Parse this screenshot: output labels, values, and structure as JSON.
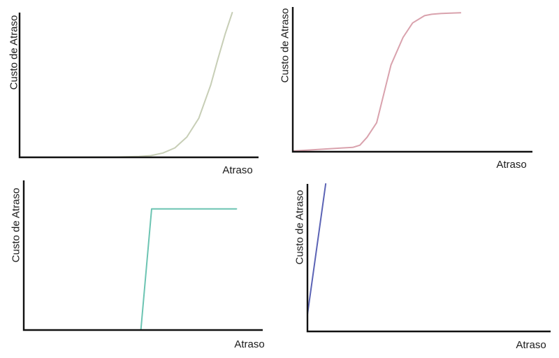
{
  "chart_data": [
    {
      "type": "line",
      "xlabel": "Atraso",
      "ylabel": "Custo de Atraso",
      "grid": false,
      "legend": false,
      "xlim": [
        0,
        10
      ],
      "ylim": [
        0,
        10
      ],
      "series": [
        {
          "color": "#c7ceb6",
          "x": [
            0,
            1,
            2,
            3,
            4,
            5,
            5.5,
            6,
            6.5,
            7,
            7.5,
            8,
            8.3,
            8.6,
            8.9
          ],
          "y": [
            0,
            0,
            0,
            0.01,
            0.02,
            0.06,
            0.12,
            0.3,
            0.65,
            1.4,
            2.7,
            5.0,
            6.8,
            8.5,
            10
          ]
        }
      ]
    },
    {
      "type": "line",
      "xlabel": "Atraso",
      "ylabel": "Custo de Atraso",
      "grid": false,
      "legend": false,
      "xlim": [
        0,
        10
      ],
      "ylim": [
        0,
        10
      ],
      "series": [
        {
          "color": "#d9a2ad",
          "x": [
            0,
            1,
            2,
            2.5,
            2.8,
            3.1,
            3.5,
            4.1,
            4.6,
            5.0,
            5.5,
            5.8,
            6.2,
            7.0
          ],
          "y": [
            0.05,
            0.15,
            0.25,
            0.3,
            0.45,
            1.0,
            2.0,
            6.0,
            7.9,
            8.9,
            9.4,
            9.5,
            9.55,
            9.6
          ]
        }
      ]
    },
    {
      "type": "line",
      "xlabel": "Atraso",
      "ylabel": "Custo de Atraso",
      "grid": false,
      "legend": false,
      "xlim": [
        0,
        10
      ],
      "ylim": [
        0,
        10
      ],
      "series": [
        {
          "color": "#6cc4b2",
          "x": [
            4.9,
            5.35,
            8.9
          ],
          "y": [
            0,
            8.1,
            8.1
          ]
        }
      ]
    },
    {
      "type": "line",
      "xlabel": "Atraso",
      "ylabel": "Custo de Atraso",
      "grid": false,
      "legend": false,
      "xlim": [
        0,
        10
      ],
      "ylim": [
        0,
        10
      ],
      "series": [
        {
          "color": "#5b63b5",
          "x": [
            0,
            0.75
          ],
          "y": [
            1.15,
            10
          ]
        }
      ]
    }
  ]
}
